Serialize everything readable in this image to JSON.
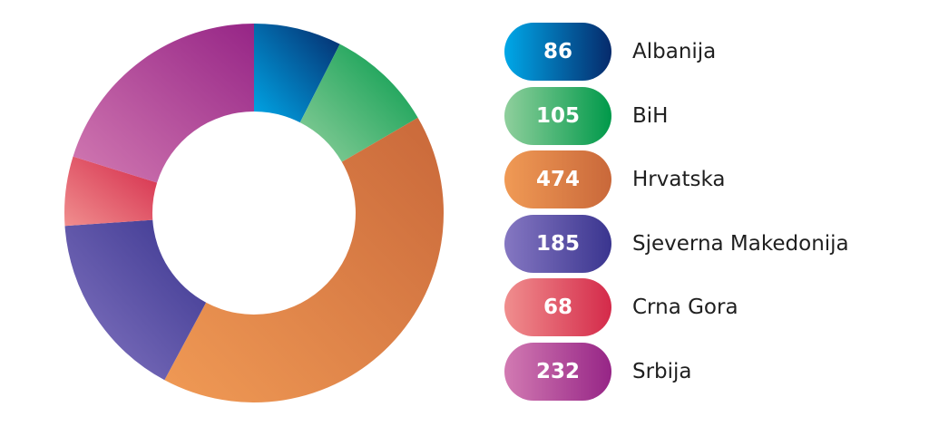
{
  "chart_data": {
    "type": "pie",
    "variant": "donut",
    "title": "",
    "categories": [
      "Albanija",
      "BiH",
      "Hrvatska",
      "Sjeverna Makedonija",
      "Crna Gora",
      "Srbija"
    ],
    "values": [
      86,
      105,
      474,
      185,
      68,
      232
    ],
    "legend_placement": "right",
    "colors": [
      {
        "from": "#00a8e8",
        "to": "#062a6b"
      },
      {
        "from": "#8fcf9c",
        "to": "#00994a"
      },
      {
        "from": "#f09a55",
        "to": "#c9683a"
      },
      {
        "from": "#8577c2",
        "to": "#3a358f"
      },
      {
        "from": "#f08e8e",
        "to": "#d42a4a"
      },
      {
        "from": "#d27ab2",
        "to": "#962586"
      }
    ]
  }
}
